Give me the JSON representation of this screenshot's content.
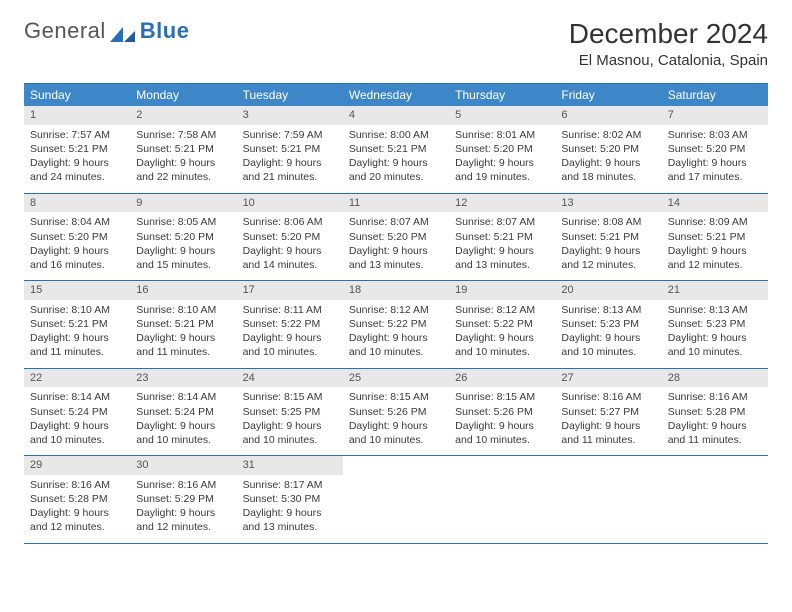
{
  "logo": {
    "text1": "General",
    "text2": "Blue"
  },
  "title": "December 2024",
  "location": "El Masnou, Catalonia, Spain",
  "colors": {
    "header_bg": "#3d87c9",
    "header_text": "#ffffff",
    "border": "#2a6fb5",
    "daynum_bg": "#e8e8e8",
    "body_text": "#3a3a3a"
  },
  "day_names": [
    "Sunday",
    "Monday",
    "Tuesday",
    "Wednesday",
    "Thursday",
    "Friday",
    "Saturday"
  ],
  "weeks": [
    [
      {
        "n": "1",
        "sr": "Sunrise: 7:57 AM",
        "ss": "Sunset: 5:21 PM",
        "d1": "Daylight: 9 hours",
        "d2": "and 24 minutes."
      },
      {
        "n": "2",
        "sr": "Sunrise: 7:58 AM",
        "ss": "Sunset: 5:21 PM",
        "d1": "Daylight: 9 hours",
        "d2": "and 22 minutes."
      },
      {
        "n": "3",
        "sr": "Sunrise: 7:59 AM",
        "ss": "Sunset: 5:21 PM",
        "d1": "Daylight: 9 hours",
        "d2": "and 21 minutes."
      },
      {
        "n": "4",
        "sr": "Sunrise: 8:00 AM",
        "ss": "Sunset: 5:21 PM",
        "d1": "Daylight: 9 hours",
        "d2": "and 20 minutes."
      },
      {
        "n": "5",
        "sr": "Sunrise: 8:01 AM",
        "ss": "Sunset: 5:20 PM",
        "d1": "Daylight: 9 hours",
        "d2": "and 19 minutes."
      },
      {
        "n": "6",
        "sr": "Sunrise: 8:02 AM",
        "ss": "Sunset: 5:20 PM",
        "d1": "Daylight: 9 hours",
        "d2": "and 18 minutes."
      },
      {
        "n": "7",
        "sr": "Sunrise: 8:03 AM",
        "ss": "Sunset: 5:20 PM",
        "d1": "Daylight: 9 hours",
        "d2": "and 17 minutes."
      }
    ],
    [
      {
        "n": "8",
        "sr": "Sunrise: 8:04 AM",
        "ss": "Sunset: 5:20 PM",
        "d1": "Daylight: 9 hours",
        "d2": "and 16 minutes."
      },
      {
        "n": "9",
        "sr": "Sunrise: 8:05 AM",
        "ss": "Sunset: 5:20 PM",
        "d1": "Daylight: 9 hours",
        "d2": "and 15 minutes."
      },
      {
        "n": "10",
        "sr": "Sunrise: 8:06 AM",
        "ss": "Sunset: 5:20 PM",
        "d1": "Daylight: 9 hours",
        "d2": "and 14 minutes."
      },
      {
        "n": "11",
        "sr": "Sunrise: 8:07 AM",
        "ss": "Sunset: 5:20 PM",
        "d1": "Daylight: 9 hours",
        "d2": "and 13 minutes."
      },
      {
        "n": "12",
        "sr": "Sunrise: 8:07 AM",
        "ss": "Sunset: 5:21 PM",
        "d1": "Daylight: 9 hours",
        "d2": "and 13 minutes."
      },
      {
        "n": "13",
        "sr": "Sunrise: 8:08 AM",
        "ss": "Sunset: 5:21 PM",
        "d1": "Daylight: 9 hours",
        "d2": "and 12 minutes."
      },
      {
        "n": "14",
        "sr": "Sunrise: 8:09 AM",
        "ss": "Sunset: 5:21 PM",
        "d1": "Daylight: 9 hours",
        "d2": "and 12 minutes."
      }
    ],
    [
      {
        "n": "15",
        "sr": "Sunrise: 8:10 AM",
        "ss": "Sunset: 5:21 PM",
        "d1": "Daylight: 9 hours",
        "d2": "and 11 minutes."
      },
      {
        "n": "16",
        "sr": "Sunrise: 8:10 AM",
        "ss": "Sunset: 5:21 PM",
        "d1": "Daylight: 9 hours",
        "d2": "and 11 minutes."
      },
      {
        "n": "17",
        "sr": "Sunrise: 8:11 AM",
        "ss": "Sunset: 5:22 PM",
        "d1": "Daylight: 9 hours",
        "d2": "and 10 minutes."
      },
      {
        "n": "18",
        "sr": "Sunrise: 8:12 AM",
        "ss": "Sunset: 5:22 PM",
        "d1": "Daylight: 9 hours",
        "d2": "and 10 minutes."
      },
      {
        "n": "19",
        "sr": "Sunrise: 8:12 AM",
        "ss": "Sunset: 5:22 PM",
        "d1": "Daylight: 9 hours",
        "d2": "and 10 minutes."
      },
      {
        "n": "20",
        "sr": "Sunrise: 8:13 AM",
        "ss": "Sunset: 5:23 PM",
        "d1": "Daylight: 9 hours",
        "d2": "and 10 minutes."
      },
      {
        "n": "21",
        "sr": "Sunrise: 8:13 AM",
        "ss": "Sunset: 5:23 PM",
        "d1": "Daylight: 9 hours",
        "d2": "and 10 minutes."
      }
    ],
    [
      {
        "n": "22",
        "sr": "Sunrise: 8:14 AM",
        "ss": "Sunset: 5:24 PM",
        "d1": "Daylight: 9 hours",
        "d2": "and 10 minutes."
      },
      {
        "n": "23",
        "sr": "Sunrise: 8:14 AM",
        "ss": "Sunset: 5:24 PM",
        "d1": "Daylight: 9 hours",
        "d2": "and 10 minutes."
      },
      {
        "n": "24",
        "sr": "Sunrise: 8:15 AM",
        "ss": "Sunset: 5:25 PM",
        "d1": "Daylight: 9 hours",
        "d2": "and 10 minutes."
      },
      {
        "n": "25",
        "sr": "Sunrise: 8:15 AM",
        "ss": "Sunset: 5:26 PM",
        "d1": "Daylight: 9 hours",
        "d2": "and 10 minutes."
      },
      {
        "n": "26",
        "sr": "Sunrise: 8:15 AM",
        "ss": "Sunset: 5:26 PM",
        "d1": "Daylight: 9 hours",
        "d2": "and 10 minutes."
      },
      {
        "n": "27",
        "sr": "Sunrise: 8:16 AM",
        "ss": "Sunset: 5:27 PM",
        "d1": "Daylight: 9 hours",
        "d2": "and 11 minutes."
      },
      {
        "n": "28",
        "sr": "Sunrise: 8:16 AM",
        "ss": "Sunset: 5:28 PM",
        "d1": "Daylight: 9 hours",
        "d2": "and 11 minutes."
      }
    ],
    [
      {
        "n": "29",
        "sr": "Sunrise: 8:16 AM",
        "ss": "Sunset: 5:28 PM",
        "d1": "Daylight: 9 hours",
        "d2": "and 12 minutes."
      },
      {
        "n": "30",
        "sr": "Sunrise: 8:16 AM",
        "ss": "Sunset: 5:29 PM",
        "d1": "Daylight: 9 hours",
        "d2": "and 12 minutes."
      },
      {
        "n": "31",
        "sr": "Sunrise: 8:17 AM",
        "ss": "Sunset: 5:30 PM",
        "d1": "Daylight: 9 hours",
        "d2": "and 13 minutes."
      },
      null,
      null,
      null,
      null
    ]
  ]
}
